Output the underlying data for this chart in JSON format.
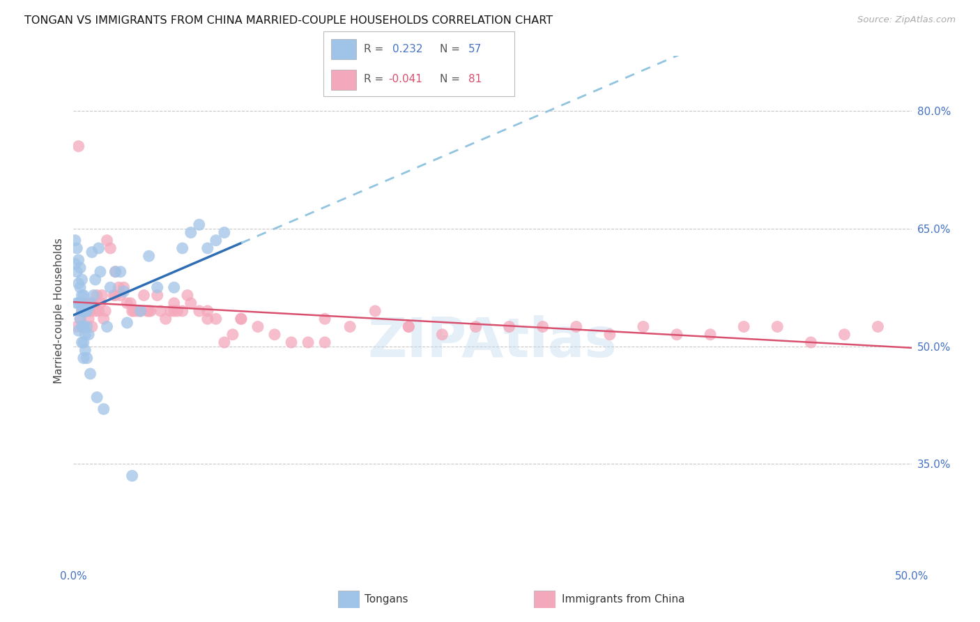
{
  "title": "TONGAN VS IMMIGRANTS FROM CHINA MARRIED-COUPLE HOUSEHOLDS CORRELATION CHART",
  "source": "Source: ZipAtlas.com",
  "ylabel": "Married-couple Households",
  "y_ticks": [
    0.35,
    0.5,
    0.65,
    0.8
  ],
  "y_tick_labels": [
    "35.0%",
    "50.0%",
    "65.0%",
    "80.0%"
  ],
  "x_range": [
    0.0,
    0.5
  ],
  "y_range": [
    0.22,
    0.87
  ],
  "tongan_color": "#A0C4E8",
  "china_color": "#F4A8BB",
  "tongan_line_color": "#2F6DB5",
  "china_line_color": "#D94F6E",
  "dashed_line_color": "#90C4E0",
  "background_color": "#FFFFFF",
  "watermark": "ZIPAtlas",
  "legend_label_tongan": "Tongans",
  "legend_label_china": "Immigrants from China",
  "tongan_x": [
    0.001,
    0.001,
    0.002,
    0.002,
    0.002,
    0.003,
    0.003,
    0.003,
    0.003,
    0.004,
    0.004,
    0.004,
    0.004,
    0.005,
    0.005,
    0.005,
    0.005,
    0.005,
    0.006,
    0.006,
    0.006,
    0.006,
    0.006,
    0.007,
    0.007,
    0.007,
    0.008,
    0.008,
    0.008,
    0.009,
    0.009,
    0.01,
    0.01,
    0.011,
    0.012,
    0.013,
    0.014,
    0.015,
    0.016,
    0.018,
    0.02,
    0.022,
    0.025,
    0.028,
    0.03,
    0.032,
    0.035,
    0.04,
    0.045,
    0.05,
    0.06,
    0.065,
    0.07,
    0.075,
    0.08,
    0.085,
    0.09
  ],
  "tongan_y": [
    0.635,
    0.605,
    0.625,
    0.595,
    0.555,
    0.61,
    0.58,
    0.555,
    0.52,
    0.6,
    0.575,
    0.555,
    0.535,
    0.585,
    0.565,
    0.545,
    0.525,
    0.505,
    0.565,
    0.545,
    0.525,
    0.505,
    0.485,
    0.545,
    0.515,
    0.495,
    0.545,
    0.525,
    0.485,
    0.55,
    0.515,
    0.555,
    0.465,
    0.62,
    0.565,
    0.585,
    0.435,
    0.625,
    0.595,
    0.42,
    0.525,
    0.575,
    0.595,
    0.595,
    0.57,
    0.53,
    0.335,
    0.545,
    0.615,
    0.575,
    0.575,
    0.625,
    0.645,
    0.655,
    0.625,
    0.635,
    0.645
  ],
  "china_x": [
    0.002,
    0.003,
    0.004,
    0.005,
    0.005,
    0.006,
    0.007,
    0.007,
    0.008,
    0.009,
    0.01,
    0.01,
    0.011,
    0.012,
    0.013,
    0.014,
    0.015,
    0.016,
    0.017,
    0.018,
    0.019,
    0.02,
    0.022,
    0.024,
    0.025,
    0.027,
    0.028,
    0.03,
    0.032,
    0.034,
    0.036,
    0.038,
    0.04,
    0.042,
    0.044,
    0.046,
    0.05,
    0.052,
    0.055,
    0.058,
    0.06,
    0.062,
    0.065,
    0.068,
    0.07,
    0.075,
    0.08,
    0.085,
    0.09,
    0.095,
    0.1,
    0.11,
    0.12,
    0.13,
    0.14,
    0.15,
    0.165,
    0.18,
    0.2,
    0.22,
    0.24,
    0.26,
    0.28,
    0.3,
    0.32,
    0.34,
    0.36,
    0.38,
    0.4,
    0.42,
    0.44,
    0.46,
    0.48,
    0.025,
    0.035,
    0.045,
    0.06,
    0.08,
    0.1,
    0.15,
    0.2
  ],
  "china_y": [
    0.525,
    0.755,
    0.535,
    0.545,
    0.525,
    0.555,
    0.545,
    0.545,
    0.545,
    0.535,
    0.555,
    0.545,
    0.525,
    0.555,
    0.545,
    0.565,
    0.545,
    0.555,
    0.565,
    0.535,
    0.545,
    0.635,
    0.625,
    0.565,
    0.595,
    0.575,
    0.565,
    0.575,
    0.555,
    0.555,
    0.545,
    0.545,
    0.545,
    0.565,
    0.545,
    0.545,
    0.565,
    0.545,
    0.535,
    0.545,
    0.555,
    0.545,
    0.545,
    0.565,
    0.555,
    0.545,
    0.535,
    0.535,
    0.505,
    0.515,
    0.535,
    0.525,
    0.515,
    0.505,
    0.505,
    0.505,
    0.525,
    0.545,
    0.525,
    0.515,
    0.525,
    0.525,
    0.525,
    0.525,
    0.515,
    0.525,
    0.515,
    0.515,
    0.525,
    0.525,
    0.505,
    0.515,
    0.525,
    0.565,
    0.545,
    0.545,
    0.545,
    0.545,
    0.535,
    0.535,
    0.525
  ]
}
